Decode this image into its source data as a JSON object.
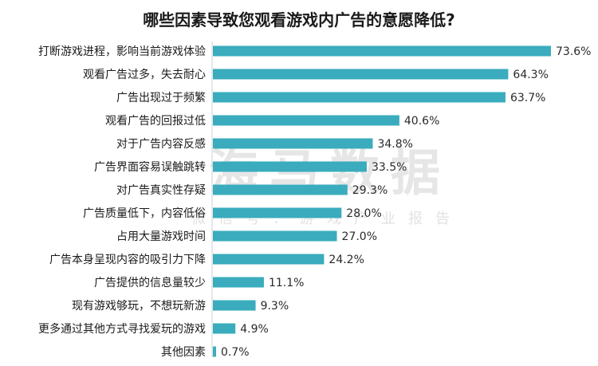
{
  "chart_data": {
    "type": "bar",
    "orientation": "horizontal",
    "title": "哪些因素导致您观看游戏内广告的意愿降低?",
    "categories": [
      "打断游戏进程，影响当前游戏体验",
      "观看广告过多，失去耐心",
      "广告出现过于频繁",
      "观看广告的回报过低",
      "对于广告内容反感",
      "广告界面容易误触跳转",
      "对广告真实性存疑",
      "广告质量低下，内容低俗",
      "占用大量游戏时间",
      "广告本身呈现内容的吸引力下降",
      "广告提供的信息量较少",
      "现有游戏够玩，不想玩新游",
      "更多通过其他方式寻找爱玩的游戏",
      "其他因素"
    ],
    "values": [
      73.6,
      64.3,
      63.7,
      40.6,
      34.8,
      33.5,
      29.3,
      28.0,
      27.0,
      24.2,
      11.1,
      9.3,
      4.9,
      0.7
    ],
    "value_labels": [
      "73.6%",
      "64.3%",
      "63.7%",
      "40.6%",
      "34.8%",
      "33.5%",
      "29.3%",
      "28.0%",
      "27.0%",
      "24.2%",
      "11.1%",
      "9.3%",
      "4.9%",
      "0.7%"
    ],
    "xlim": [
      0,
      100
    ],
    "bar_color": "#3aacbd",
    "grid": false,
    "legend": "none"
  },
  "watermark": {
    "main": "海马数据",
    "sub": "微信号：游戏产业报告"
  }
}
